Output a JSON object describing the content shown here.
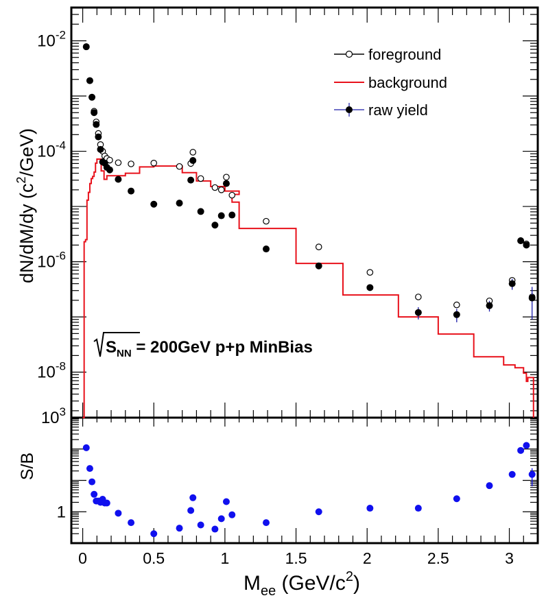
{
  "chart_data": [
    {
      "panel": "top",
      "type": "scatter",
      "ylabel": "dN/dM/dy (c²/GeV)",
      "ylabel_main": "dN/dM/dy (c",
      "ylabel_sup": "2",
      "ylabel_tail": "/GeV)",
      "yscale": "log",
      "ylim": [
        1.5e-09,
        0.04
      ],
      "xlim": [
        -0.08,
        3.2
      ],
      "y_tick_labels": [
        {
          "value": 1e-08,
          "base": "10",
          "exp": "-8"
        },
        {
          "value": 1e-06,
          "base": "10",
          "exp": "-6"
        },
        {
          "value": 0.0001,
          "base": "10",
          "exp": "-4"
        },
        {
          "value": 0.01,
          "base": "10",
          "exp": "-2"
        }
      ],
      "annotation": {
        "sqrt": "S",
        "sub": "NN",
        "rest": " = 200GeV p+p MinBias"
      },
      "legend": {
        "position": "top-right",
        "entries": [
          {
            "label": "foreground",
            "style": "open-circle-line"
          },
          {
            "label": "background",
            "style": "red-line"
          },
          {
            "label": "raw yield",
            "style": "filled-circle-errorbar"
          }
        ]
      },
      "colors": {
        "foreground": "#000000",
        "background": "#e8101a",
        "raw_yield": "#000000"
      },
      "series": [
        {
          "name": "foreground",
          "style": "open-circle",
          "points": [
            [
              0.025,
              0.0078
            ],
            [
              0.05,
              0.0019
            ],
            [
              0.065,
              0.00095
            ],
            [
              0.08,
              0.00053
            ],
            [
              0.095,
              0.00034
            ],
            [
              0.11,
              0.00021
            ],
            [
              0.125,
              0.000132
            ],
            [
              0.14,
              0.0001
            ],
            [
              0.155,
              8.2e-05
            ],
            [
              0.17,
              7.4e-05
            ],
            [
              0.19,
              6.9e-05
            ],
            [
              0.25,
              6.2e-05
            ],
            [
              0.34,
              5.9e-05
            ],
            [
              0.5,
              6.1e-05
            ],
            [
              0.68,
              5.3e-05
            ],
            [
              0.76,
              6e-05
            ],
            [
              0.775,
              9.6e-05
            ],
            [
              0.83,
              3.2e-05
            ],
            [
              0.93,
              2.2e-05
            ],
            [
              0.975,
              2e-05
            ],
            [
              1.01,
              3.4e-05
            ],
            [
              1.05,
              1.6e-05
            ],
            [
              1.29,
              5.4e-06
            ],
            [
              1.66,
              1.85e-06
            ],
            [
              2.02,
              6.4e-07
            ],
            [
              2.36,
              2.3e-07
            ],
            [
              2.63,
              1.65e-07
            ],
            [
              2.86,
              1.95e-07
            ],
            [
              3.02,
              4.6e-07
            ],
            [
              3.08,
              2.4e-06
            ],
            [
              3.12,
              2.1e-06
            ],
            [
              3.16,
              2.3e-07
            ]
          ]
        },
        {
          "name": "raw yield",
          "style": "filled-circle",
          "points": [
            [
              0.025,
              0.0078
            ],
            [
              0.05,
              0.0019
            ],
            [
              0.065,
              0.00095
            ],
            [
              0.08,
              0.0005
            ],
            [
              0.095,
              0.000305
            ],
            [
              0.11,
              0.000182
            ],
            [
              0.125,
              0.000108
            ],
            [
              0.14,
              6.4e-05
            ],
            [
              0.155,
              6.1e-05
            ],
            [
              0.17,
              5.1e-05
            ],
            [
              0.19,
              4.6e-05
            ],
            [
              0.25,
              3.1e-05
            ],
            [
              0.34,
              1.9e-05
            ],
            [
              0.5,
              1.1e-05
            ],
            [
              0.68,
              1.15e-05
            ],
            [
              0.76,
              3e-05
            ],
            [
              0.775,
              6.8e-05
            ],
            [
              0.83,
              8.1e-06
            ],
            [
              0.93,
              4.6e-06
            ],
            [
              0.975,
              6.8e-06
            ],
            [
              1.01,
              2.6e-05
            ],
            [
              1.05,
              7e-06
            ],
            [
              1.29,
              1.7e-06
            ],
            [
              1.66,
              8.4e-07
            ],
            [
              2.02,
              3.4e-07
            ],
            [
              2.36,
              1.2e-07
            ],
            [
              2.63,
              1.1e-07
            ],
            [
              2.86,
              1.6e-07
            ],
            [
              3.02,
              4e-07
            ],
            [
              3.08,
              2.4e-06
            ],
            [
              3.12,
              2e-06
            ],
            [
              3.16,
              2.2e-07
            ]
          ],
          "errors": [
            [
              2.36,
              3e-08
            ],
            [
              2.63,
              3e-08
            ],
            [
              2.86,
              3.5e-08
            ],
            [
              3.02,
              9e-08
            ],
            [
              3.16,
              1.3e-07
            ]
          ]
        },
        {
          "name": "background",
          "style": "step",
          "steps": [
            [
              0,
              1.2e-09
            ],
            [
              0.01,
              2.3e-06
            ],
            [
              0.02,
              2.5e-06
            ],
            [
              0.03,
              1.3e-05
            ],
            [
              0.04,
              1.8e-05
            ],
            [
              0.05,
              2.6e-05
            ],
            [
              0.06,
              3.2e-05
            ],
            [
              0.07,
              3.5e-05
            ],
            [
              0.08,
              4.2e-05
            ],
            [
              0.09,
              6.1e-05
            ],
            [
              0.1,
              7.2e-05
            ],
            [
              0.12,
              7.2e-05
            ],
            [
              0.13,
              4.4e-05
            ],
            [
              0.15,
              3.1e-05
            ],
            [
              0.17,
              3.6e-05
            ],
            [
              0.2,
              3.6e-05
            ],
            [
              0.3,
              4e-05
            ],
            [
              0.4,
              5.2e-05
            ],
            [
              0.5,
              5.4e-05
            ],
            [
              0.6,
              5.4e-05
            ],
            [
              0.7,
              4.1e-05
            ],
            [
              0.8,
              2.9e-05
            ],
            [
              0.9,
              2.3e-05
            ],
            [
              1.0,
              1.9e-05
            ],
            [
              1.1,
              1.65e-05
            ],
            [
              1.05,
              1.2e-05
            ],
            [
              1.1,
              4e-06
            ],
            [
              1.5,
              9.3e-07
            ],
            [
              1.83,
              2.5e-07
            ],
            [
              2.22,
              1e-07
            ],
            [
              2.5,
              4.9e-08
            ],
            [
              2.75,
              1.9e-08
            ],
            [
              2.96,
              1.35e-08
            ],
            [
              3.04,
              1.2e-08
            ],
            [
              3.1,
              9.6e-09
            ],
            [
              3.12,
              6.8e-09
            ],
            [
              3.13,
              8e-09
            ],
            [
              3.17,
              1.2e-09
            ]
          ]
        }
      ]
    },
    {
      "panel": "bottom",
      "type": "scatter",
      "xlabel_main": "M",
      "xlabel_sub": "ee",
      "xlabel_mid": " (GeV/c",
      "xlabel_sup": "2",
      "xlabel_tail": ")",
      "ylabel": "S/B",
      "yscale": "log",
      "ylim": [
        0.1,
        1000
      ],
      "xlim": [
        -0.08,
        3.2
      ],
      "x_ticks": [
        {
          "value": 0,
          "label": "0"
        },
        {
          "value": 0.5,
          "label": "0.5"
        },
        {
          "value": 1,
          "label": "1"
        },
        {
          "value": 1.5,
          "label": "1.5"
        },
        {
          "value": 2,
          "label": "2"
        },
        {
          "value": 2.5,
          "label": "2.5"
        },
        {
          "value": 3,
          "label": "3"
        }
      ],
      "y_tick_labels": [
        {
          "value": 1,
          "base": "1",
          "exp": ""
        },
        {
          "value": 1000,
          "base": "10",
          "exp": "3"
        }
      ],
      "colors": {
        "points": "#1010ee"
      },
      "series": [
        {
          "name": "S/B",
          "points": [
            [
              0.025,
              110
            ],
            [
              0.05,
              24
            ],
            [
              0.065,
              9
            ],
            [
              0.08,
              3.6
            ],
            [
              0.095,
              2.2
            ],
            [
              0.11,
              2.2
            ],
            [
              0.125,
              2.0
            ],
            [
              0.14,
              2.5
            ],
            [
              0.155,
              1.9
            ],
            [
              0.17,
              1.9
            ],
            [
              0.25,
              0.9
            ],
            [
              0.34,
              0.45
            ],
            [
              0.5,
              0.2
            ],
            [
              0.68,
              0.3
            ],
            [
              0.76,
              1.1
            ],
            [
              0.775,
              2.8
            ],
            [
              0.83,
              0.38
            ],
            [
              0.93,
              0.28
            ],
            [
              0.975,
              0.6
            ],
            [
              1.01,
              2.1
            ],
            [
              1.05,
              0.8
            ],
            [
              1.29,
              0.45
            ],
            [
              1.66,
              1.0
            ],
            [
              2.02,
              1.3
            ],
            [
              2.36,
              1.3
            ],
            [
              2.63,
              2.6
            ],
            [
              2.86,
              6.8
            ],
            [
              3.02,
              15.5
            ],
            [
              3.08,
              90
            ],
            [
              3.12,
              130
            ],
            [
              3.16,
              15.5
            ]
          ],
          "errors": [
            [
              3.16,
              9
            ]
          ]
        }
      ]
    }
  ]
}
